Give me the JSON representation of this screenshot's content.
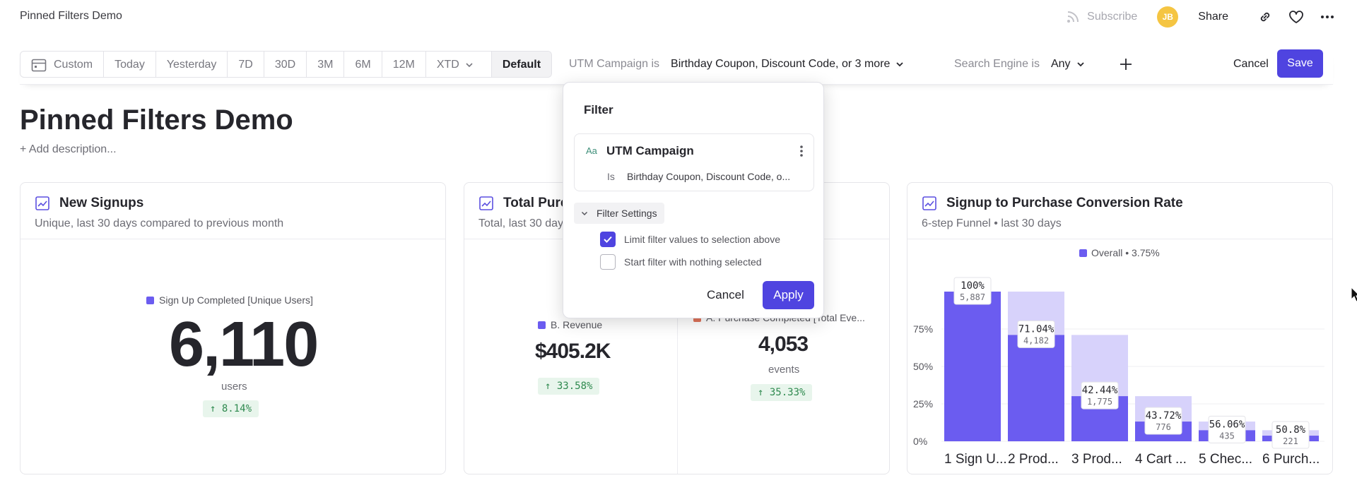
{
  "app": {
    "title": "Pinned Filters Demo"
  },
  "top_actions": {
    "subscribe": "Subscribe",
    "avatar_initials": "JB",
    "share": "Share"
  },
  "date_range": {
    "buttons": [
      "Custom",
      "Today",
      "Yesterday",
      "7D",
      "30D",
      "3M",
      "6M",
      "12M",
      "XTD",
      "Default"
    ],
    "selected": "Default"
  },
  "filters": [
    {
      "label": "UTM Campaign is",
      "value": "Birthday Coupon, Discount Code, or 3 more"
    },
    {
      "label": "Search Engine is",
      "value": "Any"
    }
  ],
  "toolbar": {
    "cancel": "Cancel",
    "save": "Save"
  },
  "page": {
    "title": "Pinned Filters Demo",
    "add_description": "+ Add description..."
  },
  "cards": {
    "signups": {
      "title": "New Signups",
      "subtitle": "Unique, last 30 days compared to previous month",
      "legend": "Sign Up Completed [Unique Users]",
      "value": "6,110",
      "unit": "users",
      "delta": "↑ 8.14%"
    },
    "purchases": {
      "title": "Total Purc",
      "subtitle": "Total, last 30 day",
      "metric_b": {
        "legend": "B. Revenue",
        "value": "$405.2K",
        "delta": "↑ 33.58%"
      },
      "metric_a": {
        "legend": "A. Purchase Completed [Total Eve...",
        "value": "4,053",
        "unit": "events",
        "delta": "↑ 35.33%"
      }
    },
    "funnel": {
      "title": "Signup to Purchase Conversion Rate",
      "subtitle": "6-step Funnel • last 30 days",
      "legend": "Overall • 3.75%"
    }
  },
  "chart_data": {
    "type": "bar",
    "title": "Signup to Purchase Conversion Rate",
    "ylim": [
      0,
      100
    ],
    "yticks": [
      "0%",
      "25%",
      "50%",
      "75%"
    ],
    "categories": [
      "1 Sign U...",
      "2 Prod...",
      "3 Prod...",
      "4 Cart ...",
      "5 Chec...",
      "6 Purch..."
    ],
    "series": [
      {
        "name": "Overall • 3.75%",
        "values": [
          100,
          71.04,
          30.15,
          13.18,
          7.39,
          3.75
        ]
      }
    ],
    "step_labels": [
      "100%",
      "71.04%",
      "42.44%",
      "43.72%",
      "56.06%",
      "50.8%"
    ],
    "step_counts": [
      "5,887",
      "4,182",
      "1,775",
      "776",
      "435",
      "221"
    ],
    "prev_step_values": [
      100,
      100,
      71.04,
      30.15,
      13.18,
      7.39
    ],
    "colors": {
      "bar": "#6b5cf0",
      "ghost": "#d7d2fb"
    }
  },
  "popover": {
    "title": "Filter",
    "field_type": "Aa",
    "field": "UTM Campaign",
    "operator": "Is",
    "values": "Birthday Coupon, Discount Code, o...",
    "settings_label": "Filter Settings",
    "option_limit": "Limit filter values to selection above",
    "option_empty": "Start filter with nothing selected",
    "cancel": "Cancel",
    "apply": "Apply"
  },
  "colors": {
    "accent": "#4f44e0",
    "metric_b": "#6b5cf0",
    "metric_a": "#e0735a",
    "positive": "#2f8a4f"
  }
}
